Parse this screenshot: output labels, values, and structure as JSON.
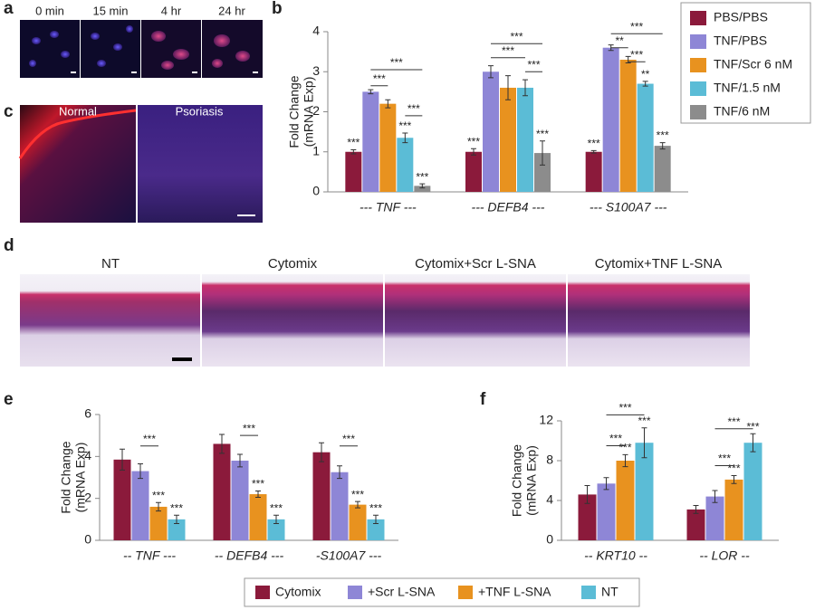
{
  "panel_labels": [
    "a",
    "b",
    "c",
    "d",
    "e",
    "f"
  ],
  "panel_a": {
    "labels": [
      "0 min",
      "15 min",
      "4 hr",
      "24 hr"
    ]
  },
  "panel_c": {
    "labels": [
      "Normal",
      "Psoriasis"
    ]
  },
  "panel_d": {
    "labels": [
      "NT",
      "Cytomix",
      "Cytomix+Scr L-SNA",
      "Cytomix+TNF L-SNA"
    ]
  },
  "chart_data": [
    {
      "type": "bar",
      "ylabel": [
        "Fold Change",
        "(mRNA Exp)"
      ],
      "categories": [
        "--- TNF ---",
        "--- DEFB4 ---",
        "--- S100A7 ---"
      ],
      "ylim": [
        0,
        4
      ],
      "yticks": [
        0,
        1,
        2,
        3,
        4
      ],
      "legend": "right",
      "series": [
        {
          "name": "PBS/PBS",
          "color": "#8b1a3b",
          "values": [
            1,
            1,
            1
          ],
          "errors": [
            0.05,
            0.08,
            0.03
          ],
          "labels": [
            "***",
            "***",
            "***"
          ]
        },
        {
          "name": "TNF/PBS",
          "color": "#8e86d6",
          "values": [
            2.5,
            3.0,
            3.6
          ],
          "errors": [
            0.05,
            0.15,
            0.07
          ]
        },
        {
          "name": "TNF/Scr 6 nM",
          "color": "#e8921f",
          "values": [
            2.2,
            2.6,
            3.3
          ],
          "errors": [
            0.1,
            0.3,
            0.08
          ]
        },
        {
          "name": "TNF/1.5 nM",
          "color": "#5bbcd6",
          "values": [
            1.35,
            2.6,
            2.7
          ],
          "errors": [
            0.12,
            0.2,
            0.06
          ],
          "labels": [
            "***",
            null,
            "**"
          ]
        },
        {
          "name": "TNF/6 nM",
          "color": "#8c8c8c",
          "values": [
            0.15,
            0.97,
            1.15
          ],
          "errors": [
            0.05,
            0.3,
            0.08
          ],
          "labels": [
            "***",
            "***",
            "***"
          ]
        }
      ],
      "brackets": [
        "***",
        "***",
        "***",
        "***",
        "***",
        "***",
        "***",
        "**",
        "***"
      ]
    },
    {
      "type": "bar",
      "ylabel": [
        "Fold Change",
        "(mRNA Exp)"
      ],
      "categories": [
        "-- TNF ---",
        "-- DEFB4 ---",
        "-S100A7 ---"
      ],
      "ylim": [
        0,
        6
      ],
      "yticks": [
        0,
        2,
        4,
        6
      ],
      "legend": "bottom",
      "series": [
        {
          "name": "Cytomix",
          "color": "#8b1a3b",
          "values": [
            3.85,
            4.6,
            4.2
          ],
          "errors": [
            0.5,
            0.45,
            0.45
          ]
        },
        {
          "name": "+Scr L-SNA",
          "color": "#8e86d6",
          "values": [
            3.3,
            3.8,
            3.25
          ],
          "errors": [
            0.35,
            0.3,
            0.3
          ]
        },
        {
          "name": "+TNF L-SNA",
          "color": "#e8921f",
          "values": [
            1.6,
            2.2,
            1.7
          ],
          "errors": [
            0.2,
            0.15,
            0.15
          ],
          "labels": [
            "***",
            "***",
            "***"
          ]
        },
        {
          "name": "NT",
          "color": "#5bbcd6",
          "values": [
            1.0,
            1.0,
            1.0
          ],
          "errors": [
            0.2,
            0.2,
            0.2
          ],
          "labels": [
            "***",
            "***",
            "***"
          ]
        }
      ],
      "brackets": [
        "***",
        "***",
        "***"
      ]
    },
    {
      "type": "bar",
      "ylabel": [
        "Fold Change",
        "(mRNA Exp)"
      ],
      "categories": [
        "-- KRT10 --",
        "-- LOR --"
      ],
      "ylim": [
        0,
        12
      ],
      "yticks": [
        0,
        4,
        8,
        12
      ],
      "series": [
        {
          "color": "#8b1a3b",
          "values": [
            4.6,
            3.1
          ],
          "errors": [
            0.9,
            0.4
          ]
        },
        {
          "color": "#8e86d6",
          "values": [
            5.7,
            4.4
          ],
          "errors": [
            0.6,
            0.6
          ]
        },
        {
          "color": "#e8921f",
          "values": [
            8.0,
            6.1
          ],
          "errors": [
            0.6,
            0.4
          ],
          "labels": [
            "***",
            "***"
          ]
        },
        {
          "color": "#5bbcd6",
          "values": [
            9.8,
            9.8
          ],
          "errors": [
            1.5,
            0.9
          ],
          "labels": [
            "***",
            "***"
          ]
        }
      ],
      "brackets": [
        "***",
        "***",
        "***",
        "***"
      ]
    }
  ]
}
